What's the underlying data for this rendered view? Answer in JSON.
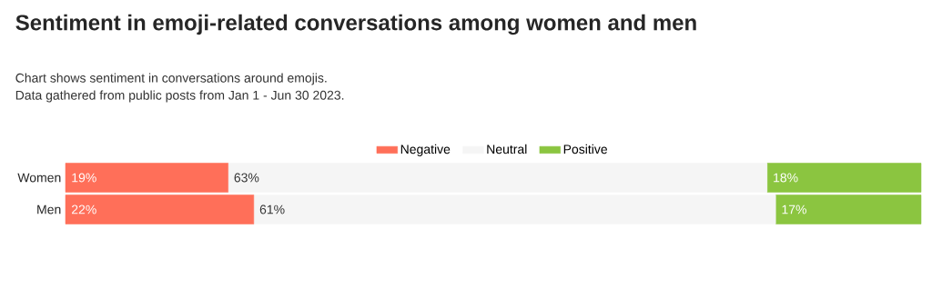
{
  "chart_data": {
    "type": "bar",
    "orientation": "horizontal",
    "stacked": true,
    "title": "Sentiment in emoji-related conversations among women and men",
    "subtitle": "Chart shows sentiment in conversations around emojis.",
    "annotations": [
      "Data gathered from public posts from Jan 1 - Jun 30 2023."
    ],
    "categories": [
      "Women",
      "Men"
    ],
    "series": [
      {
        "name": "Negative",
        "color": "#ff6f59",
        "values": [
          19,
          22
        ],
        "value_labels": [
          "19%",
          "22%"
        ]
      },
      {
        "name": "Neutral",
        "color": "#f5f5f5",
        "values": [
          63,
          61
        ],
        "value_labels": [
          "63%",
          "61%"
        ]
      },
      {
        "name": "Positive",
        "color": "#8bc540",
        "values": [
          18,
          17
        ],
        "value_labels": [
          "18%",
          "17%"
        ]
      }
    ],
    "legend": "top"
  }
}
